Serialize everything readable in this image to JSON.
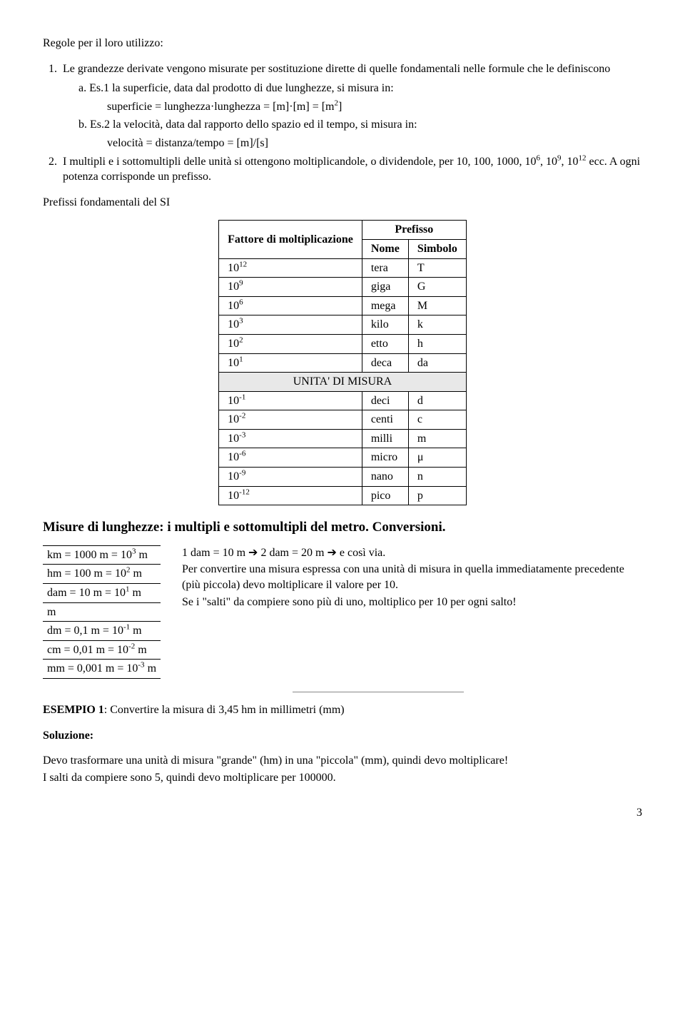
{
  "intro": "Regole per il loro utilizzo:",
  "rule1_num": "1.",
  "rule1": "Le grandezze derivate vengono misurate per sostituzione dirette di quelle fondamentali nelle formule che le definiscono",
  "rule1_a_label": "a.",
  "rule1_a": "Es.1 la superficie, data dal prodotto di due lunghezze, si misura in:",
  "rule1_a_formula": "superficie = lunghezza·lunghezza = [m]·[m] = [m",
  "rule1_a_formula_sup": "2",
  "rule1_a_formula_end": "]",
  "rule1_b_label": "b.",
  "rule1_b": "Es.2 la velocità, data dal rapporto dello spazio ed il tempo, si misura in:",
  "rule1_b_formula": "velocità = distanza/tempo = [m]/[s]",
  "rule2_num": "2.",
  "rule2_a": "I multipli e i sottomultipli delle unità si ottengono moltiplicandole, o dividendole, per 10, 100, 1000, 10",
  "rule2_sup1": "6",
  "rule2_mid": ", 10",
  "rule2_sup2": "9",
  "rule2_mid2": ", 10",
  "rule2_sup3": "12",
  "rule2_b": " ecc. A ogni potenza corrisponde un prefisso.",
  "prefix_intro": "Prefissi fondamentali del SI",
  "table": {
    "h1": "Fattore di moltiplicazione",
    "h2": "Prefisso",
    "h2a": "Nome",
    "h2b": "Simbolo",
    "rows": [
      {
        "exp": "12",
        "nome": "tera",
        "sym": "T"
      },
      {
        "exp": "9",
        "nome": "giga",
        "sym": "G"
      },
      {
        "exp": "6",
        "nome": "mega",
        "sym": "M"
      },
      {
        "exp": "3",
        "nome": "kilo",
        "sym": "k"
      },
      {
        "exp": "2",
        "nome": "etto",
        "sym": "h"
      },
      {
        "exp": "1",
        "nome": "deca",
        "sym": "da"
      }
    ],
    "unita": "UNITA' DI MISURA",
    "rows2": [
      {
        "exp": "-1",
        "nome": "deci",
        "sym": "d"
      },
      {
        "exp": "-2",
        "nome": "centi",
        "sym": "c"
      },
      {
        "exp": "-3",
        "nome": "milli",
        "sym": "m"
      },
      {
        "exp": "-6",
        "nome": "micro",
        "sym": "μ"
      },
      {
        "exp": "-9",
        "nome": "nano",
        "sym": "n"
      },
      {
        "exp": "-12",
        "nome": "pico",
        "sym": "p"
      }
    ]
  },
  "heading2": "Misure di lunghezze: i multipli e sottomultipli del metro. Conversioni.",
  "conv": [
    {
      "t1": "km = 1000 m = 10",
      "exp": "3",
      "t2": " m"
    },
    {
      "t1": "hm = 100 m = 10",
      "exp": "2",
      "t2": " m"
    },
    {
      "t1": "dam = 10 m = 10",
      "exp": "1",
      "t2": " m"
    },
    {
      "t1": "m",
      "exp": "",
      "t2": ""
    },
    {
      "t1": "dm = 0,1 m = 10",
      "exp": "-1",
      "t2": " m"
    },
    {
      "t1": "cm = 0,01 m = 10",
      "exp": "-2",
      "t2": " m"
    },
    {
      "t1": "mm = 0,001 m = 10",
      "exp": "-3",
      "t2": " m"
    }
  ],
  "right_p1_a": "1 dam = 10 m ",
  "right_p1_b": " 2 dam = 20 m ",
  "right_p1_c": " e così via.",
  "right_p2": "Per convertire una misura espressa con una unità di misura in quella immediatamente precedente (più piccola) devo moltiplicare il valore per 10.",
  "right_p3": "Se i \"salti\" da compiere sono più di uno, moltiplico per 10 per ogni salto!",
  "esempio_label": "ESEMPIO 1",
  "esempio_text": ": Convertire la misura di 3,45 hm in millimetri (mm)",
  "soluzione": "Soluzione:",
  "sol_p1": "Devo trasformare una unità di misura \"grande\" (hm) in una \"piccola\" (mm), quindi devo moltiplicare!",
  "sol_p2": "I salti da compiere sono 5, quindi devo moltiplicare per 100000.",
  "page": "3"
}
